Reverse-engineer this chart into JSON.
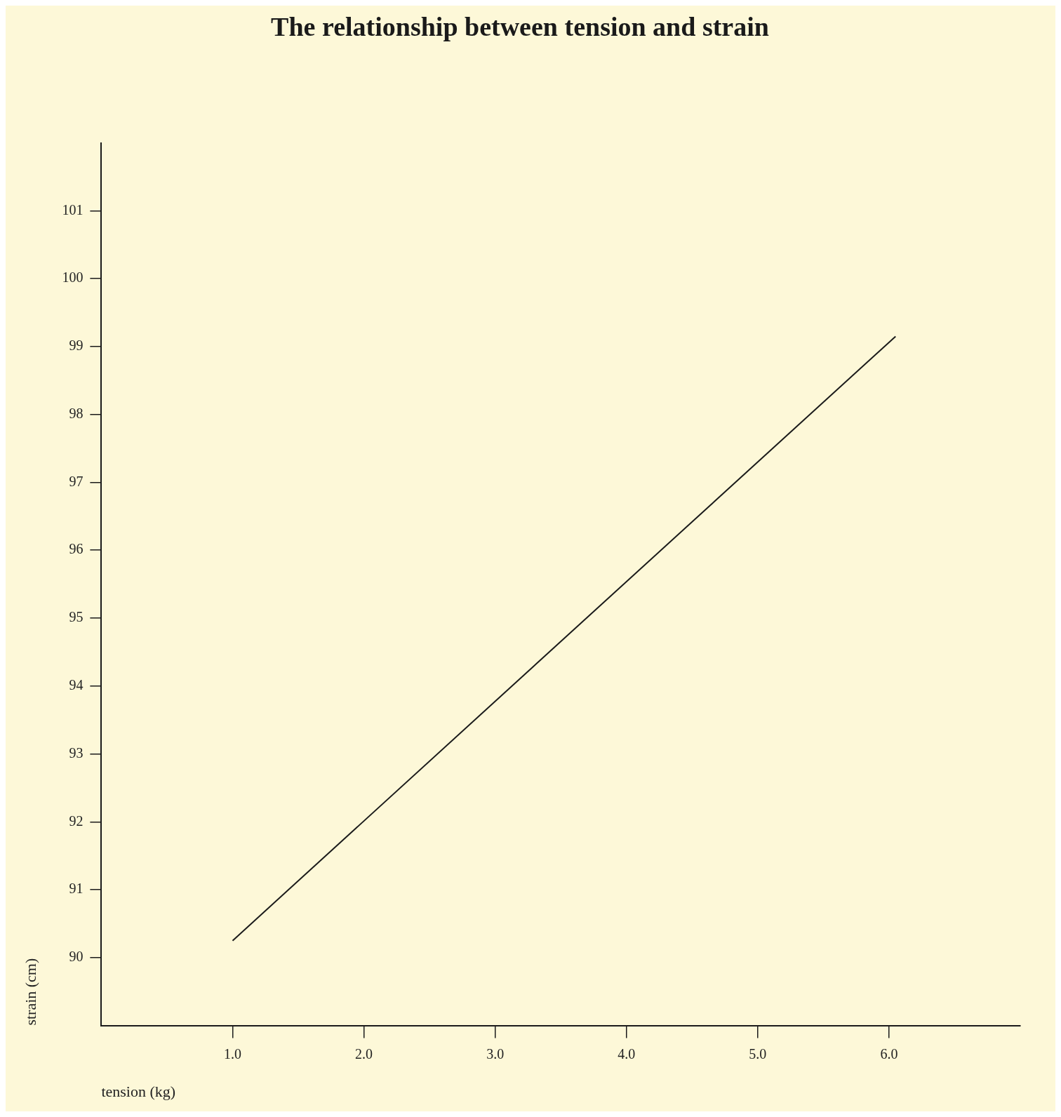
{
  "chart_data": {
    "type": "line",
    "title": "The relationship between tension and strain",
    "xlabel": "tension (kg)",
    "ylabel": "strain (cm)",
    "x": [
      1.0,
      6.05
    ],
    "series": [
      {
        "color": "#1a1a1a",
        "values": [
          90.25,
          99.15
        ]
      }
    ],
    "xlim": [
      0,
      7
    ],
    "xticks": [
      {
        "value": 1,
        "label": "1.0"
      },
      {
        "value": 2,
        "label": "2.0"
      },
      {
        "value": 3,
        "label": "3.0"
      },
      {
        "value": 4,
        "label": "4.0"
      },
      {
        "value": 5,
        "label": "5.0"
      },
      {
        "value": 6,
        "label": "6.0"
      }
    ],
    "ylim": [
      89,
      102
    ],
    "yticks": [
      90,
      91,
      92,
      93,
      94,
      95,
      96,
      97,
      98,
      99,
      100,
      101
    ],
    "marker": "none",
    "line_style": "solid",
    "legend": false
  }
}
